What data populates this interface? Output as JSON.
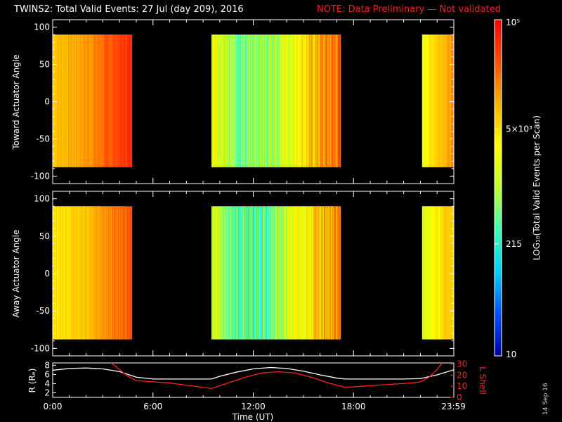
{
  "header": {
    "title": "TWINS2: Total Valid Events: 27 Jul (day 209), 2016",
    "note": "NOTE: Data Preliminary — Not validated"
  },
  "footer": {
    "datestamp": "14 Sep 16"
  },
  "colors": {
    "background": "#000000",
    "note": "#ff2020",
    "r_curve": "#ffffff",
    "lshell_curve": "#ff2020",
    "colormap": [
      "#0000a0",
      "#0050ff",
      "#00d0ff",
      "#40ffb0",
      "#c0ff30",
      "#ffff00",
      "#ffb000",
      "#ff5000",
      "#ff0000"
    ]
  },
  "chart_data": [
    {
      "type": "heatmap",
      "name": "toward",
      "ylabel": "Toward Actuator Angle",
      "xlim": [
        0,
        24
      ],
      "ylim": [
        -110,
        110
      ],
      "yticks": [
        100,
        50,
        0,
        -50,
        -100
      ],
      "data_angle_range": [
        -88,
        90
      ],
      "segments": [
        {
          "start": 0.0,
          "end": 4.75,
          "level_profile": [
            0.72,
            0.74,
            0.76,
            0.78,
            0.82,
            0.86,
            0.9,
            0.93
          ]
        },
        {
          "start": 9.5,
          "end": 17.25,
          "level_profile": [
            0.62,
            0.5,
            0.42,
            0.45,
            0.55,
            0.66,
            0.78,
            0.84
          ]
        },
        {
          "start": 22.1,
          "end": 24.0,
          "level_profile": [
            0.6,
            0.68,
            0.74,
            0.78
          ]
        }
      ]
    },
    {
      "type": "heatmap",
      "name": "away",
      "ylabel": "Away Actuator Angle",
      "xlim": [
        0,
        24
      ],
      "ylim": [
        -110,
        110
      ],
      "yticks": [
        100,
        50,
        0,
        -50,
        -100
      ],
      "data_angle_range": [
        -88,
        90
      ],
      "segments": [
        {
          "start": 0.0,
          "end": 4.75,
          "level_profile": [
            0.66,
            0.68,
            0.7,
            0.72,
            0.76,
            0.8,
            0.84,
            0.86
          ]
        },
        {
          "start": 9.5,
          "end": 17.25,
          "level_profile": [
            0.58,
            0.44,
            0.36,
            0.4,
            0.5,
            0.62,
            0.74,
            0.8
          ]
        },
        {
          "start": 22.1,
          "end": 24.0,
          "level_profile": [
            0.55,
            0.62,
            0.68,
            0.72
          ]
        }
      ]
    },
    {
      "type": "line",
      "name": "orbit",
      "xlabel": "Time (UT)",
      "xtick_labels": [
        "0:00",
        "6:00",
        "12:00",
        "18:00",
        "23:59"
      ],
      "xtick_values": [
        0,
        6,
        12,
        18,
        23.98
      ],
      "ylabel_left": "R (Rₑ)",
      "ylim_left": [
        1,
        8.5
      ],
      "yticks_left": [
        8,
        6,
        4,
        2
      ],
      "ylabel_right": "L Shell",
      "ylim_right": [
        0,
        31
      ],
      "yticks_right": [
        30,
        20,
        10,
        0
      ],
      "series": [
        {
          "axis": "left",
          "x": [
            0,
            1,
            2,
            3,
            4,
            5,
            6,
            7,
            8,
            9,
            9.5,
            10,
            11,
            12,
            13,
            14,
            15,
            16,
            17,
            17.5,
            18,
            19,
            20,
            21,
            22,
            23,
            24
          ],
          "y": [
            6.9,
            7.3,
            7.4,
            7.2,
            6.6,
            5.4,
            5.0,
            5.0,
            5.0,
            5.0,
            5.0,
            5.6,
            6.5,
            7.2,
            7.5,
            7.3,
            6.7,
            5.9,
            5.2,
            5.0,
            5.0,
            5.0,
            5.0,
            5.0,
            5.1,
            5.9,
            7.0
          ]
        },
        {
          "axis": "right",
          "x": [
            3.5,
            4.0,
            4.5,
            5.0,
            6.0,
            7.0,
            8.0,
            9.0,
            9.5,
            10.5,
            11.5,
            12.5,
            13.5,
            14.5,
            15.5,
            16.5,
            17.5,
            18.5,
            19.5,
            20.5,
            21.5,
            22.0,
            22.5,
            23.0,
            23.3
          ],
          "y": [
            31,
            25,
            19,
            15,
            14,
            13,
            11,
            9,
            8,
            13,
            18,
            22,
            23,
            22,
            18,
            13,
            9,
            10,
            11,
            12,
            13,
            14,
            18,
            25,
            31
          ]
        }
      ]
    }
  ],
  "colorbar": {
    "label": "LOG₁₀(Total Valid Events per Scan)",
    "ticks": [
      {
        "label": "10⁵",
        "value": 100000
      },
      {
        "label": "5×10³",
        "value": 5000
      },
      {
        "label": "215",
        "value": 215
      },
      {
        "label": "10",
        "value": 10
      }
    ],
    "range": [
      10,
      100000
    ]
  }
}
